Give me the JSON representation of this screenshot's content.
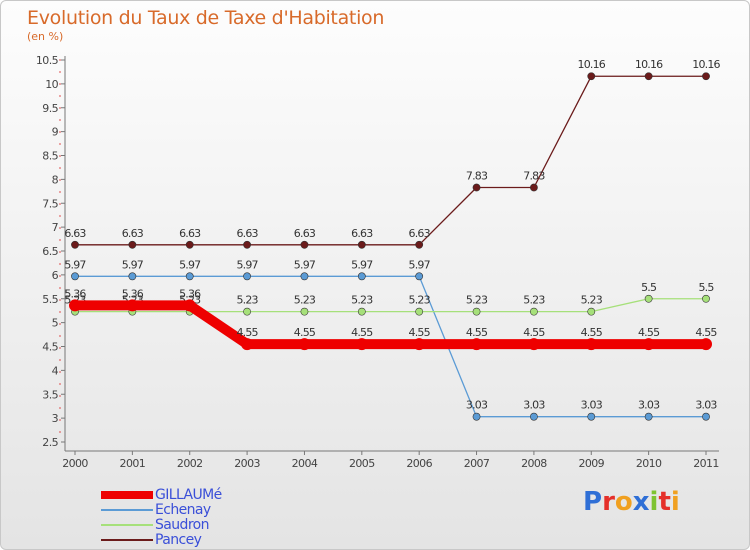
{
  "title": "Evolution du Taux de Taxe d'Habitation",
  "subtitle": "(en %)",
  "logo_text": "Proxiti",
  "chart_data": {
    "type": "line",
    "x": [
      "2000",
      "2001",
      "2002",
      "2003",
      "2004",
      "2005",
      "2006",
      "2007",
      "2008",
      "2009",
      "2010",
      "2011"
    ],
    "ylim": [
      2.5,
      10.5
    ],
    "yticks": [
      "2.5",
      "3",
      "3.5",
      "4",
      "4.5",
      "5",
      "5.5",
      "6",
      "6.5",
      "7",
      "7.5",
      "8",
      "8.5",
      "9",
      "9.5",
      "10",
      "10.5"
    ],
    "grid": false,
    "legend_position": "bottom-left",
    "series": [
      {
        "name": "Pancey",
        "color": "#6b1b1b",
        "values": [
          6.63,
          6.63,
          6.63,
          6.63,
          6.63,
          6.63,
          6.63,
          7.83,
          7.83,
          10.16,
          10.16,
          10.16
        ],
        "labels": [
          "6.63",
          "6.63",
          "6.63",
          "6.63",
          "6.63",
          "6.63",
          "6.63",
          "7.83",
          "7.83",
          "10.16",
          "10.16",
          "10.16"
        ]
      },
      {
        "name": "Echenay",
        "color": "#5b9bd5",
        "values": [
          5.97,
          5.97,
          5.97,
          5.97,
          5.97,
          5.97,
          5.97,
          3.03,
          3.03,
          3.03,
          3.03,
          3.03
        ],
        "labels": [
          "5.97",
          "5.97",
          "5.97",
          "5.97",
          "5.97",
          "5.97",
          "5.97",
          "3.03",
          "3.03",
          "3.03",
          "3.03",
          "3.03"
        ]
      },
      {
        "name": "Saudron",
        "color": "#a6e07a",
        "values": [
          5.23,
          5.23,
          5.23,
          5.23,
          5.23,
          5.23,
          5.23,
          5.23,
          5.23,
          5.23,
          5.5,
          5.5
        ],
        "labels": [
          "5.23",
          "5.23",
          "5.23",
          "5.23",
          "5.23",
          "5.23",
          "5.23",
          "5.23",
          "5.23",
          "5.23",
          "5.5",
          "5.5"
        ]
      },
      {
        "name": "GILLAUMé",
        "color": "#ee0000",
        "values": [
          5.36,
          5.36,
          5.36,
          4.55,
          4.55,
          4.55,
          4.55,
          4.55,
          4.55,
          4.55,
          4.55,
          4.55
        ],
        "labels": [
          "5.36",
          "5.36",
          "5.36",
          "4.55",
          "4.55",
          "4.55",
          "4.55",
          "4.55",
          "4.55",
          "4.55",
          "4.55",
          "4.55"
        ]
      }
    ]
  },
  "legend": [
    {
      "label": "GILLAUMé",
      "color": "#ee0000",
      "thickness": 8
    },
    {
      "label": "Echenay",
      "color": "#5b9bd5",
      "thickness": 2
    },
    {
      "label": "Saudron",
      "color": "#a6e07a",
      "thickness": 2
    },
    {
      "label": "Pancey",
      "color": "#6b1b1b",
      "thickness": 2
    }
  ]
}
